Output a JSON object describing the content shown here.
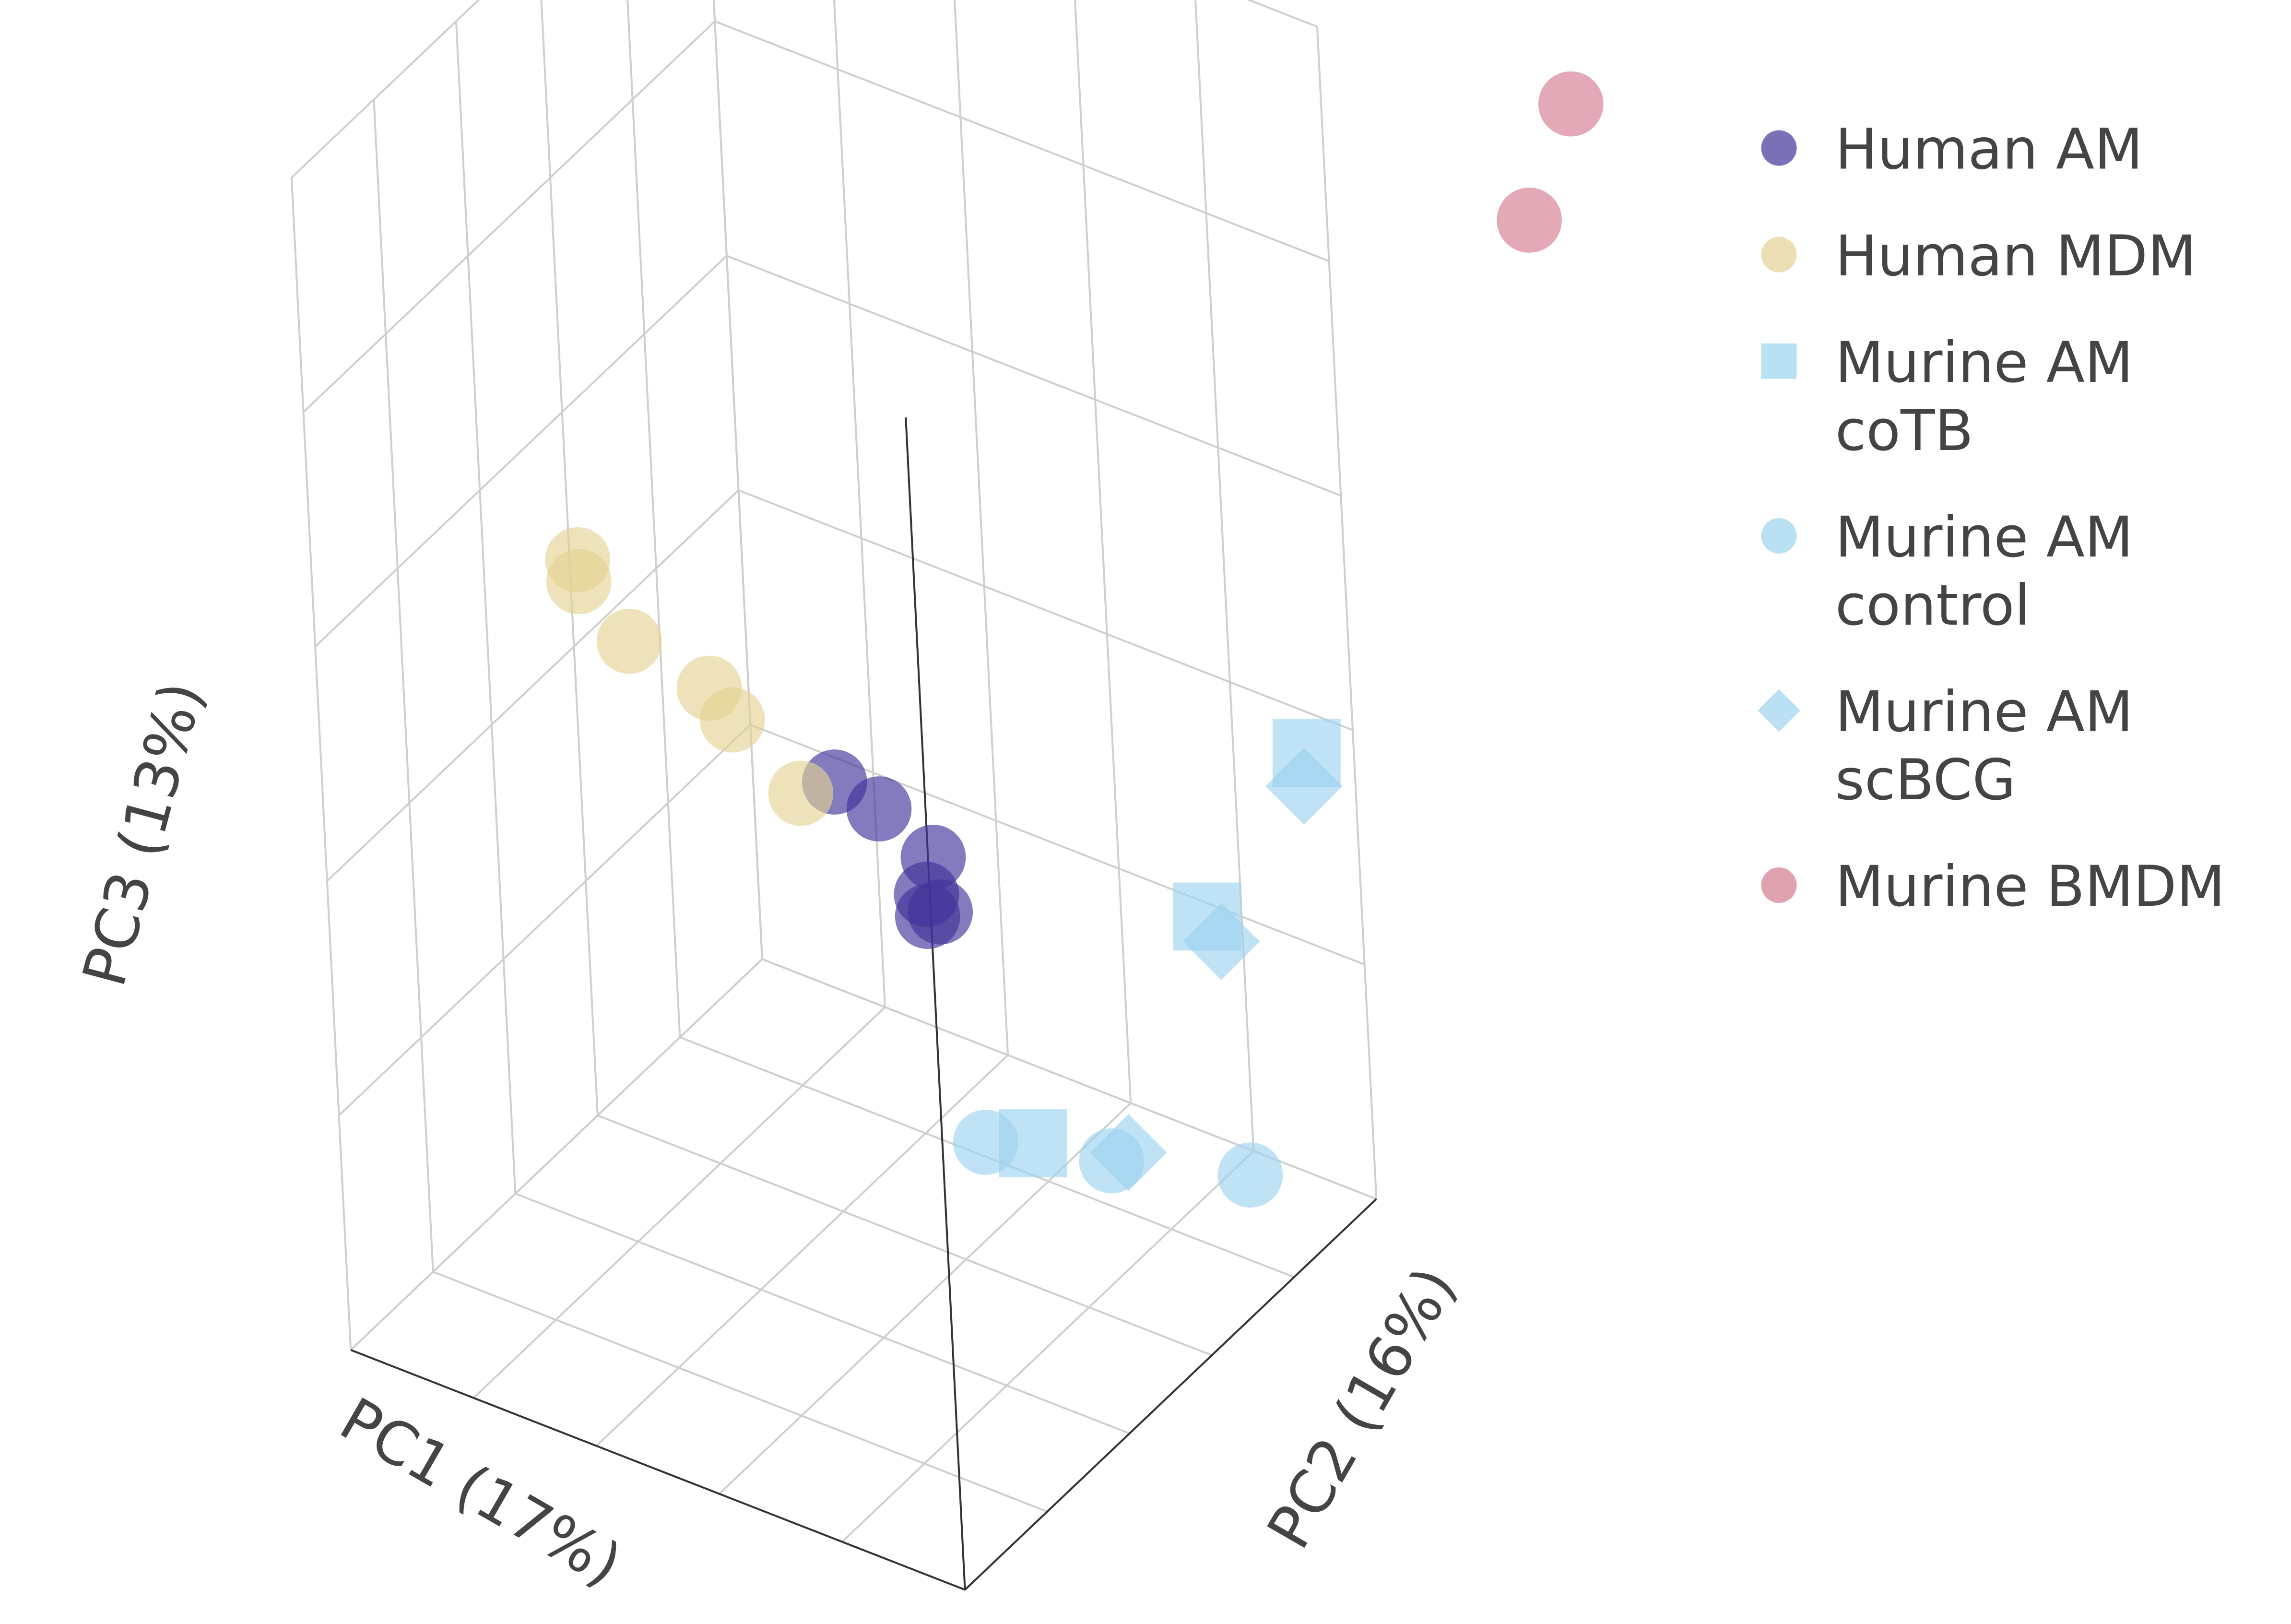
{
  "chart_data": {
    "type": "scatter3d",
    "x_label": "PC1 (17%)",
    "y_label": "PC2 (16%)",
    "z_label": "PC3 (13%)",
    "xlim": [
      0,
      1
    ],
    "ylim": [
      0,
      1
    ],
    "zlim": [
      0,
      1
    ],
    "grid": true,
    "series": [
      {
        "name": "Human AM",
        "color": "#3f3499",
        "symbol": "circle",
        "x": [
          0.4,
          0.4,
          0.4,
          0.4,
          0.4,
          0.4
        ],
        "y": [
          0.37,
          0.27,
          0.15,
          0.17,
          0.14,
          0.17
        ],
        "z": [
          0.57,
          0.48,
          0.35,
          0.31,
          0.27,
          0.28
        ]
      },
      {
        "name": "Human MDM",
        "color": "#e3d293",
        "symbol": "circle",
        "x": [
          0.3,
          0.3,
          0.3,
          0.3,
          0.3,
          0.3
        ],
        "y": [
          0.8,
          0.8,
          0.69,
          0.51,
          0.46,
          0.31
        ],
        "z": [
          1.07,
          1.04,
          0.9,
          0.74,
          0.67,
          0.49
        ]
      },
      {
        "name": "Murine AM coTB",
        "color": "#9dd3ef",
        "symbol": "square",
        "x": [
          0.9,
          0.9,
          0.9
        ],
        "y": [
          -0.03,
          0.22,
          0.65
        ],
        "z": [
          0.56,
          0.47,
          0.39
        ]
      },
      {
        "name": "Murine AM control",
        "color": "#9dd3ef",
        "symbol": "circle",
        "x": [
          0.9,
          0.9,
          0.9
        ],
        "y": [
          0.76,
          0.47,
          0.15
        ],
        "z": [
          0.45,
          0.27,
          0.08
        ]
      },
      {
        "name": "Murine AM scBCG",
        "color": "#9dd3ef",
        "symbol": "diamond",
        "x": [
          0.9,
          0.9,
          0.9
        ],
        "y": [
          -0.02,
          0.19,
          0.43
        ],
        "z": [
          0.52,
          0.42,
          0.26
        ]
      },
      {
        "name": "Murine BMDM",
        "color": "#d47b8f",
        "symbol": "circle",
        "x": [
          1.2,
          1.2
        ],
        "y": [
          -0.3,
          -0.19
        ],
        "z": [
          1.4,
          1.3
        ]
      }
    ]
  }
}
